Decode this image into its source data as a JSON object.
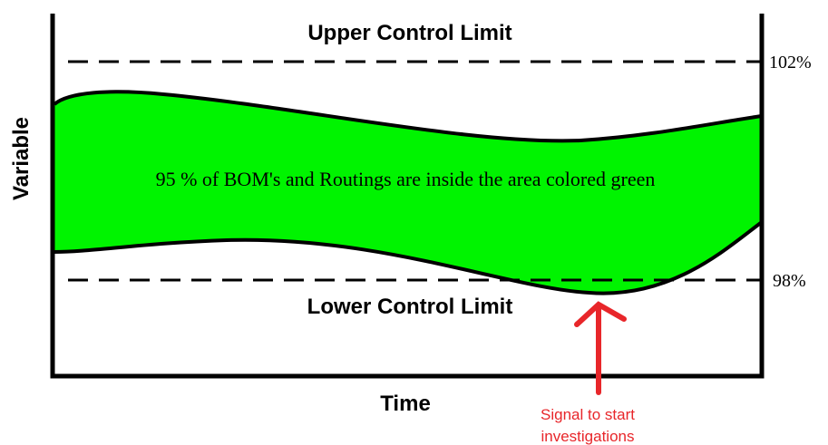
{
  "upper_limit": {
    "label": "Upper Control Limit",
    "value_label": "102%"
  },
  "lower_limit": {
    "label": "Lower Control Limit",
    "value_label": "98%"
  },
  "band_text": "95 % of BOM's and Routings are inside the area colored green",
  "axes": {
    "y_label": "Variable",
    "x_label": "Time"
  },
  "annotation": {
    "lines": [
      "Signal to start",
      "investigations"
    ]
  }
}
